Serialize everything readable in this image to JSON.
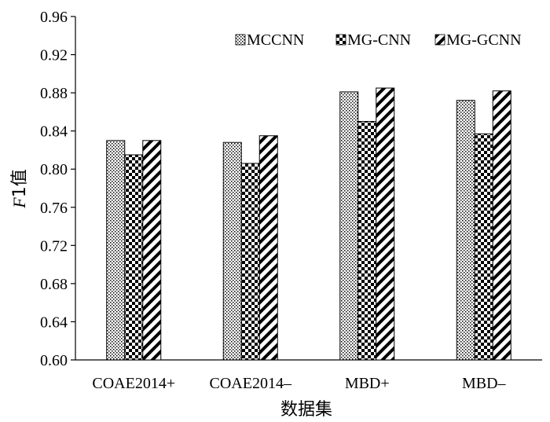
{
  "chart_data": {
    "type": "bar",
    "title": "",
    "xlabel": "数据集",
    "ylabel_italic": "F",
    "ylabel_rest": "1值",
    "categories": [
      "COAE2014+",
      "COAE2014–",
      "MBD+",
      "MBD–"
    ],
    "ylim": [
      0.6,
      0.96
    ],
    "yticks": [
      "0.60",
      "0.64",
      "0.68",
      "0.72",
      "0.76",
      "0.80",
      "0.84",
      "0.88",
      "0.92",
      "0.96"
    ],
    "series": [
      {
        "name": "MCCNN",
        "values": [
          0.83,
          0.828,
          0.881,
          0.872
        ]
      },
      {
        "name": "MG-CNN",
        "values": [
          0.815,
          0.806,
          0.85,
          0.837
        ]
      },
      {
        "name": "MG-GCNN",
        "values": [
          0.83,
          0.835,
          0.885,
          0.882
        ]
      }
    ],
    "legend_position": "top-right",
    "grid": false
  }
}
